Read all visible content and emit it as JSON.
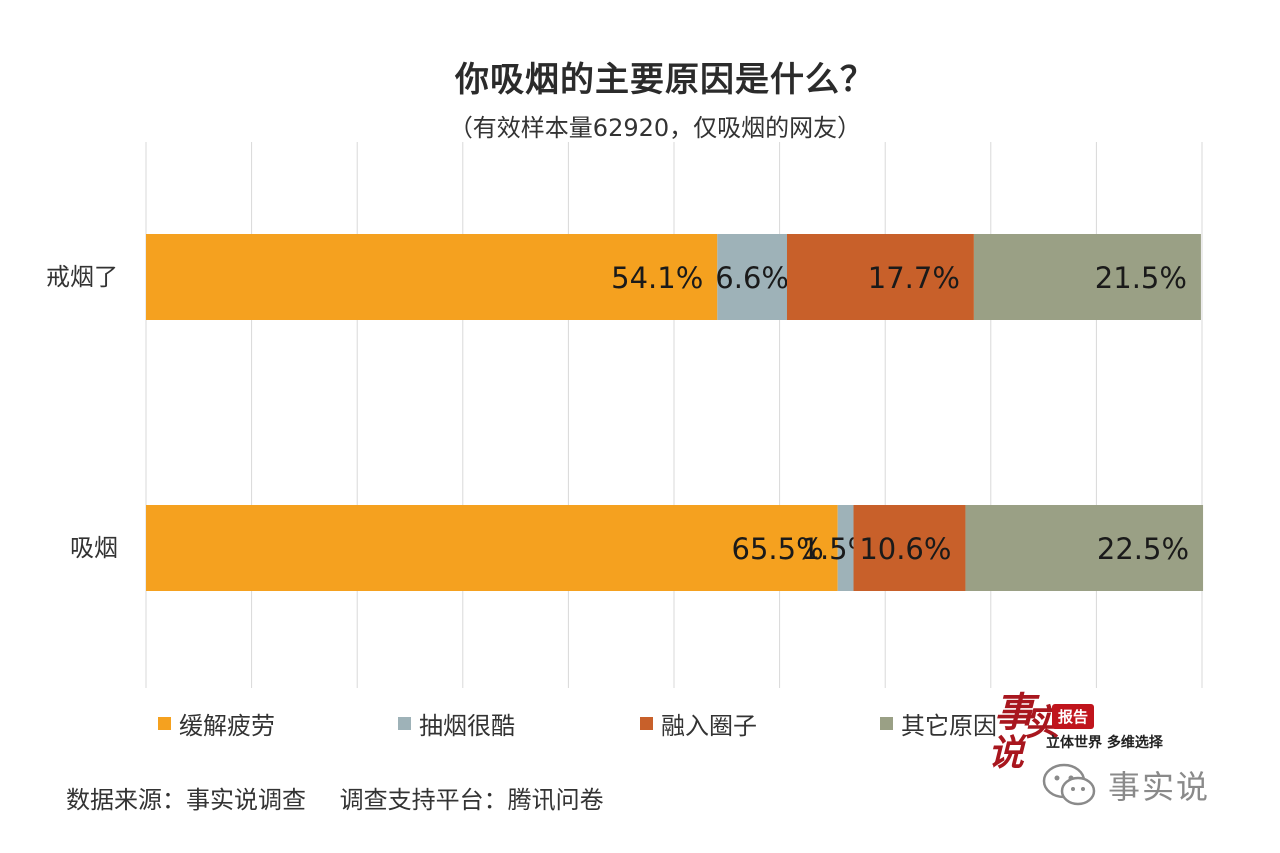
{
  "title": "你吸烟的主要原因是什么？",
  "subtitle": "（有效样本量62920，仅吸烟的网友）",
  "chart_data": {
    "type": "bar",
    "orientation": "horizontal",
    "stacked": true,
    "percent_stacked": true,
    "categories": [
      "戒烟了",
      "吸烟"
    ],
    "series": [
      {
        "name": "缓解疲劳",
        "color": "#f5a11f",
        "values": [
          54.1,
          65.5
        ],
        "labels": [
          "54.1%",
          "65.5%"
        ]
      },
      {
        "name": "抽烟很酷",
        "color": "#9eb2b8",
        "values": [
          6.6,
          1.5
        ],
        "labels": [
          "6.6%",
          "1.5%"
        ]
      },
      {
        "name": "融入圈子",
        "color": "#c8602a",
        "values": [
          17.7,
          10.6
        ],
        "labels": [
          "17.7%",
          "10.6%"
        ]
      },
      {
        "name": "其它原因",
        "color": "#9aa085",
        "values": [
          21.5,
          22.5
        ],
        "labels": [
          "21.5%",
          "22.5%"
        ]
      }
    ],
    "xlim": [
      0,
      100
    ],
    "grid": true,
    "legend_position": "bottom"
  },
  "source": {
    "data_source": "数据来源：事实说调查",
    "platform": "调查支持平台：腾讯问卷"
  },
  "logo": {
    "char1": "事",
    "char2": "实",
    "char3": "说",
    "badge": "报告",
    "tagline": "立体世界 多维选择"
  },
  "wechat": {
    "icon": "wechat-icon",
    "name": "事实说"
  }
}
